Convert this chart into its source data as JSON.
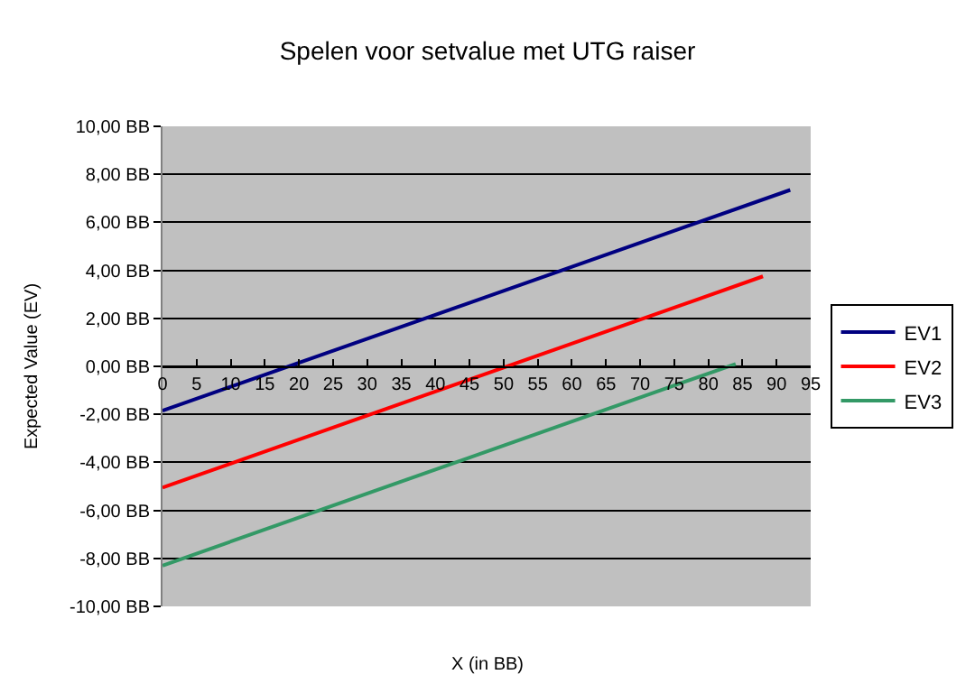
{
  "chart_data": {
    "type": "line",
    "title": "Spelen voor setvalue met UTG raiser",
    "xlabel": "X (in BB)",
    "ylabel": "Expected Value (EV)",
    "series": [
      {
        "name": "EV1",
        "color": "#000080",
        "x": [
          0,
          92
        ],
        "values": [
          -1.85,
          7.35
        ]
      },
      {
        "name": "EV2",
        "color": "#ff0000",
        "x": [
          0,
          88
        ],
        "values": [
          -5.05,
          3.75
        ]
      },
      {
        "name": "EV3",
        "color": "#339966",
        "x": [
          0,
          84
        ],
        "values": [
          -8.3,
          0.1
        ]
      }
    ],
    "xlim": [
      0,
      95
    ],
    "xticks": [
      0,
      5,
      10,
      15,
      20,
      25,
      30,
      35,
      40,
      45,
      50,
      55,
      60,
      65,
      70,
      75,
      80,
      85,
      90,
      95
    ],
    "ylim": [
      -10,
      10
    ],
    "yticks": [
      {
        "value": -10,
        "label": "-10,00 BB"
      },
      {
        "value": -8,
        "label": "-8,00 BB"
      },
      {
        "value": -6,
        "label": "-6,00 BB"
      },
      {
        "value": -4,
        "label": "-4,00 BB"
      },
      {
        "value": -2,
        "label": "-2,00 BB"
      },
      {
        "value": 0,
        "label": "0,00 BB"
      },
      {
        "value": 2,
        "label": "2,00 BB"
      },
      {
        "value": 4,
        "label": "4,00 BB"
      },
      {
        "value": 6,
        "label": "6,00 BB"
      },
      {
        "value": 8,
        "label": "8,00 BB"
      },
      {
        "value": 10,
        "label": "10,00 BB"
      }
    ],
    "grid": "y",
    "legend": "right",
    "marker": "none",
    "line_style": "solid"
  }
}
